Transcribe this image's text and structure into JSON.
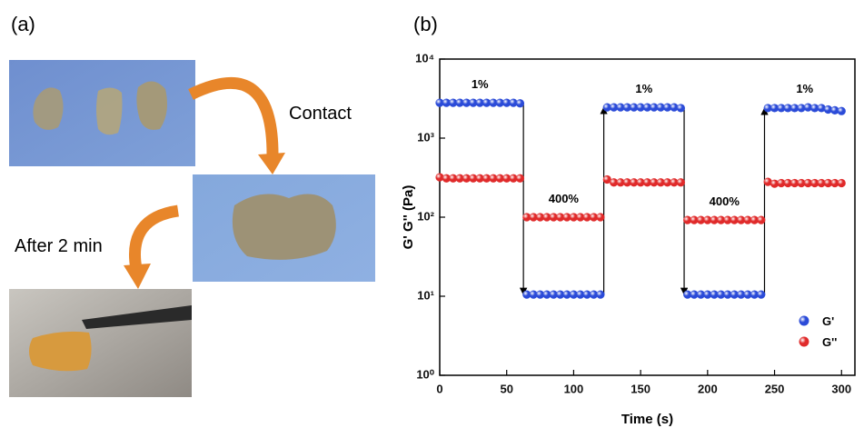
{
  "panel_labels": [
    "(a)",
    "(b)"
  ],
  "photo_panel": {
    "captions": [
      "Contact",
      "After 2 min"
    ]
  },
  "chart_data": {
    "type": "scatter",
    "xlabel": "Time (s)",
    "ylabel": "G' G'' (Pa)",
    "log_y": true,
    "legend": "lower right",
    "xlim": [
      0,
      310
    ],
    "xticks": [
      0,
      50,
      100,
      150,
      200,
      250,
      300
    ],
    "ylim": [
      1,
      10000
    ],
    "yticks": [
      {
        "value": 1,
        "label": "10⁰"
      },
      {
        "value": 10,
        "label": "10¹"
      },
      {
        "value": 100,
        "label": "10²"
      },
      {
        "value": 1000,
        "label": "10³"
      },
      {
        "value": 10000,
        "label": "10⁴"
      }
    ],
    "annotations": [
      "1%",
      "400%",
      "1%",
      "400%",
      "1%"
    ],
    "x": [
      0,
      5,
      10,
      15,
      20,
      25,
      30,
      35,
      40,
      45,
      50,
      55,
      60,
      65,
      70,
      75,
      80,
      85,
      90,
      95,
      100,
      105,
      110,
      115,
      120,
      125,
      130,
      135,
      140,
      145,
      150,
      155,
      160,
      165,
      170,
      175,
      180,
      185,
      190,
      195,
      200,
      205,
      210,
      215,
      220,
      225,
      230,
      235,
      240,
      245,
      250,
      255,
      260,
      265,
      270,
      275,
      280,
      285,
      290,
      295,
      300
    ],
    "series": [
      {
        "name": "G'",
        "color": "#2b4bd8",
        "values": [
          2800,
          2800,
          2800,
          2800,
          2800,
          2800,
          2800,
          2800,
          2800,
          2800,
          2800,
          2800,
          2750,
          10.5,
          10.5,
          10.5,
          10.5,
          10.5,
          10.5,
          10.5,
          10.5,
          10.5,
          10.5,
          10.5,
          10.5,
          2450,
          2450,
          2450,
          2450,
          2450,
          2450,
          2450,
          2450,
          2450,
          2450,
          2450,
          2400,
          10.5,
          10.5,
          10.5,
          10.5,
          10.5,
          10.5,
          10.5,
          10.5,
          10.5,
          10.5,
          10.5,
          10.5,
          2400,
          2400,
          2400,
          2400,
          2400,
          2400,
          2450,
          2400,
          2400,
          2300,
          2250,
          2200
        ]
      },
      {
        "name": "G''",
        "color": "#e02a2a",
        "values": [
          320,
          310,
          310,
          310,
          310,
          310,
          310,
          310,
          310,
          310,
          310,
          310,
          310,
          100,
          100,
          100,
          100,
          100,
          100,
          100,
          100,
          100,
          100,
          100,
          100,
          300,
          275,
          275,
          275,
          275,
          275,
          275,
          275,
          275,
          275,
          275,
          275,
          92,
          92,
          92,
          92,
          92,
          92,
          92,
          92,
          92,
          92,
          92,
          92,
          280,
          265,
          270,
          270,
          270,
          270,
          270,
          270,
          270,
          270,
          270,
          270
        ]
      }
    ]
  }
}
